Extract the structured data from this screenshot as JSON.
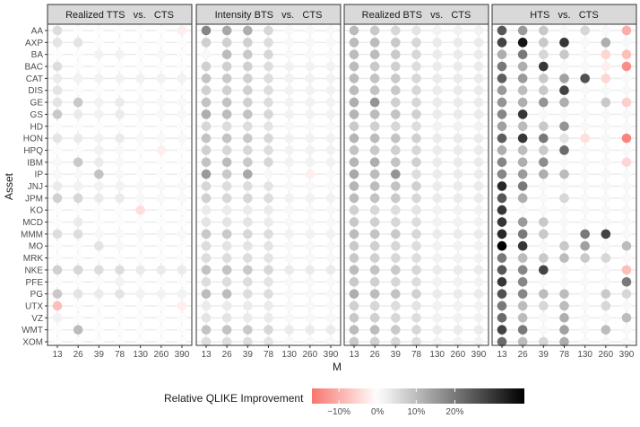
{
  "chart_data": {
    "type": "heatmap",
    "panels": [
      "Realized TTS   vs.   CTS",
      "Intensity BTS   vs.   CTS",
      "Realized BTS   vs.   CTS",
      "HTS   vs.   CTS"
    ],
    "x": [
      "13",
      "26",
      "39",
      "78",
      "130",
      "260",
      "390"
    ],
    "y": [
      "AA",
      "AXP",
      "BA",
      "BAC",
      "CAT",
      "DIS",
      "GE",
      "GS",
      "HD",
      "HON",
      "HPQ",
      "IBM",
      "IP",
      "JNJ",
      "JPM",
      "KO",
      "MCD",
      "MMM",
      "MO",
      "MRK",
      "NKE",
      "PFE",
      "PG",
      "UTX",
      "VZ",
      "WMT",
      "XOM"
    ],
    "xlabel": "M",
    "ylabel": "Asset",
    "legend": {
      "title": "Relative QLIKE Improvement",
      "tick_values": [
        -10,
        0,
        10,
        20
      ],
      "tick_labels": [
        "−10%",
        "0%",
        "10%",
        "20%"
      ],
      "range": [
        -17,
        38
      ],
      "colors": {
        "low": "#f8766d",
        "mid": "#ffffff",
        "high": "#000000"
      }
    },
    "values": [
      [
        [
          5,
          0.5,
          0.5,
          0.5,
          0.5,
          0.5,
          -2
        ],
        [
          4,
          4,
          0.5,
          0.5,
          0.5,
          0.5,
          0.5
        ],
        [
          0.5,
          0.5,
          2,
          2,
          0.5,
          1,
          0.5
        ],
        [
          5,
          0.5,
          0.5,
          0.5,
          0.5,
          0.5,
          -0.5
        ],
        [
          3,
          2,
          2,
          2,
          2,
          2,
          2
        ],
        [
          4,
          0.5,
          0.5,
          0.5,
          0.5,
          0.5,
          0.5
        ],
        [
          4,
          8,
          2,
          3,
          1,
          1,
          1
        ],
        [
          8,
          3,
          2,
          3,
          1,
          1,
          1
        ],
        [
          0.5,
          0.5,
          0.5,
          0.5,
          0.5,
          0.5,
          0.5
        ],
        [
          4,
          3,
          2,
          3,
          1,
          1,
          1
        ],
        [
          0.5,
          0.5,
          2,
          1,
          0.5,
          -2,
          0.5
        ],
        [
          1,
          8,
          3,
          1,
          0.5,
          0.5,
          0.5
        ],
        [
          1,
          1,
          9,
          1,
          0.5,
          0.5,
          0.5
        ],
        [
          3,
          2,
          2,
          2,
          1,
          1,
          1
        ],
        [
          7,
          6,
          3,
          3,
          1,
          1,
          1
        ],
        [
          0.5,
          0.5,
          0.5,
          0.5,
          -4,
          0.5,
          0.5
        ],
        [
          0.5,
          3,
          0.5,
          0.5,
          0.5,
          0.5,
          0.5
        ],
        [
          5,
          5,
          1,
          1,
          1,
          1,
          1
        ],
        [
          0.5,
          0.5,
          4,
          1,
          0.5,
          0.5,
          0.5
        ],
        [
          0.5,
          0.5,
          0.5,
          0.5,
          0.5,
          0.5,
          0.5
        ],
        [
          7,
          6,
          5,
          5,
          3,
          3,
          3
        ],
        [
          0.5,
          0.5,
          0.5,
          2,
          0.5,
          0.5,
          0.5
        ],
        [
          8,
          4,
          3,
          4,
          2,
          2,
          2
        ],
        [
          -8,
          0.5,
          0.5,
          0.5,
          0.5,
          0.5,
          -2
        ],
        [
          2,
          0.5,
          0.5,
          0.5,
          0.5,
          0.5,
          0.5
        ],
        [
          0.5,
          10,
          0.5,
          0.5,
          0.5,
          0.5,
          0.5
        ],
        [
          0.5,
          0.5,
          0.5,
          0.5,
          0.5,
          0.5,
          0.5
        ]
      ],
      [
        [
          18,
          13,
          12,
          6,
          1,
          1,
          1
        ],
        [
          7,
          7,
          7,
          5,
          1,
          1,
          1
        ],
        [
          1,
          10,
          8,
          6,
          1,
          1,
          1
        ],
        [
          7,
          7,
          7,
          5,
          2,
          2,
          2
        ],
        [
          9,
          8,
          7,
          5,
          2,
          2,
          2
        ],
        [
          7,
          7,
          7,
          5,
          2,
          2,
          2
        ],
        [
          9,
          9,
          7,
          5,
          2,
          2,
          2
        ],
        [
          12,
          10,
          9,
          6,
          2,
          2,
          2
        ],
        [
          6,
          5,
          5,
          4,
          1,
          1,
          1
        ],
        [
          9,
          9,
          8,
          6,
          2,
          2,
          2
        ],
        [
          7,
          6,
          6,
          5,
          2,
          2,
          2
        ],
        [
          9,
          10,
          8,
          6,
          2,
          2,
          2
        ],
        [
          15,
          8,
          13,
          1,
          1,
          -2,
          1
        ],
        [
          6,
          5,
          5,
          4,
          1,
          1,
          1
        ],
        [
          7,
          6,
          6,
          5,
          2,
          2,
          2
        ],
        [
          3,
          3,
          3,
          3,
          1,
          1,
          1
        ],
        [
          4,
          4,
          4,
          3,
          1,
          1,
          1
        ],
        [
          8,
          8,
          6,
          5,
          2,
          2,
          2
        ],
        [
          5,
          4,
          4,
          4,
          1,
          1,
          1
        ],
        [
          5,
          5,
          5,
          4,
          1,
          1,
          1
        ],
        [
          9,
          9,
          8,
          6,
          3,
          3,
          3
        ],
        [
          5,
          5,
          5,
          4,
          1,
          1,
          1
        ],
        [
          10,
          10,
          5,
          5,
          1,
          1,
          1
        ],
        [
          3,
          3,
          3,
          3,
          1,
          1,
          1
        ],
        [
          4,
          4,
          3,
          3,
          1,
          1,
          1
        ],
        [
          9,
          9,
          8,
          6,
          3,
          3,
          3
        ],
        [
          5,
          5,
          5,
          4,
          1,
          1,
          1
        ]
      ],
      [
        [
          10,
          8,
          6,
          4,
          2,
          2,
          2
        ],
        [
          10,
          10,
          8,
          6,
          3,
          3,
          3
        ],
        [
          10,
          10,
          8,
          6,
          3,
          3,
          3
        ],
        [
          10,
          8,
          7,
          5,
          3,
          3,
          3
        ],
        [
          10,
          9,
          8,
          6,
          3,
          3,
          3
        ],
        [
          10,
          9,
          8,
          6,
          3,
          3,
          3
        ],
        [
          12,
          16,
          7,
          6,
          3,
          3,
          3
        ],
        [
          11,
          10,
          9,
          7,
          3,
          3,
          3
        ],
        [
          8,
          7,
          6,
          5,
          2,
          2,
          2
        ],
        [
          11,
          10,
          9,
          7,
          3,
          3,
          3
        ],
        [
          9,
          8,
          7,
          6,
          3,
          3,
          3
        ],
        [
          11,
          12,
          9,
          7,
          3,
          3,
          3
        ],
        [
          13,
          10,
          16,
          5,
          3,
          3,
          3
        ],
        [
          11,
          10,
          9,
          7,
          3,
          3,
          3
        ],
        [
          10,
          9,
          8,
          6,
          3,
          3,
          3
        ],
        [
          7,
          6,
          5,
          4,
          2,
          2,
          2
        ],
        [
          8,
          7,
          6,
          5,
          2,
          2,
          2
        ],
        [
          10,
          9,
          8,
          6,
          3,
          3,
          3
        ],
        [
          8,
          7,
          6,
          5,
          2,
          2,
          2
        ],
        [
          8,
          7,
          6,
          5,
          2,
          2,
          2
        ],
        [
          10,
          9,
          8,
          6,
          3,
          3,
          3
        ],
        [
          8,
          7,
          6,
          5,
          2,
          2,
          2
        ],
        [
          12,
          10,
          9,
          7,
          3,
          3,
          3
        ],
        [
          7,
          6,
          5,
          4,
          2,
          2,
          2
        ],
        [
          8,
          7,
          6,
          5,
          2,
          2,
          2
        ],
        [
          10,
          10,
          8,
          6,
          3,
          3,
          3
        ],
        [
          8,
          7,
          6,
          5,
          2,
          2,
          2
        ]
      ],
      [
        [
          25,
          15,
          8,
          1,
          6,
          1,
          -10
        ],
        [
          28,
          35,
          8,
          30,
          1,
          12,
          1
        ],
        [
          12,
          20,
          6,
          8,
          1,
          -5,
          -8
        ],
        [
          20,
          12,
          30,
          1,
          1,
          -2,
          -14
        ],
        [
          24,
          15,
          8,
          14,
          26,
          -5,
          1
        ],
        [
          15,
          10,
          8,
          28,
          1,
          1,
          1
        ],
        [
          16,
          12,
          16,
          12,
          1,
          8,
          -6
        ],
        [
          18,
          30,
          1,
          1,
          1,
          1,
          1
        ],
        [
          14,
          10,
          8,
          16,
          1,
          1,
          1
        ],
        [
          24,
          30,
          20,
          4,
          -4,
          1,
          -15
        ],
        [
          12,
          10,
          8,
          22,
          1,
          1,
          1
        ],
        [
          18,
          12,
          17,
          1,
          1,
          1,
          -5
        ],
        [
          18,
          15,
          12,
          10,
          1,
          1,
          1
        ],
        [
          32,
          20,
          1,
          1,
          1,
          1,
          1
        ],
        [
          25,
          12,
          1,
          6,
          1,
          1,
          1
        ],
        [
          30,
          1,
          1,
          1,
          1,
          1,
          1
        ],
        [
          30,
          15,
          8,
          1,
          1,
          1,
          1
        ],
        [
          32,
          20,
          8,
          1,
          20,
          28,
          1
        ],
        [
          38,
          30,
          1,
          8,
          14,
          1,
          10
        ],
        [
          20,
          10,
          8,
          10,
          8,
          6,
          1
        ],
        [
          25,
          18,
          28,
          1,
          1,
          1,
          -8
        ],
        [
          30,
          18,
          1,
          1,
          1,
          1,
          20
        ],
        [
          26,
          18,
          10,
          10,
          1,
          8,
          6
        ],
        [
          20,
          10,
          6,
          10,
          1,
          6,
          1
        ],
        [
          22,
          10,
          1,
          12,
          1,
          1,
          10
        ],
        [
          28,
          20,
          1,
          14,
          1,
          10,
          1
        ],
        [
          22,
          10,
          6,
          12,
          1,
          1,
          1
        ]
      ]
    ]
  }
}
